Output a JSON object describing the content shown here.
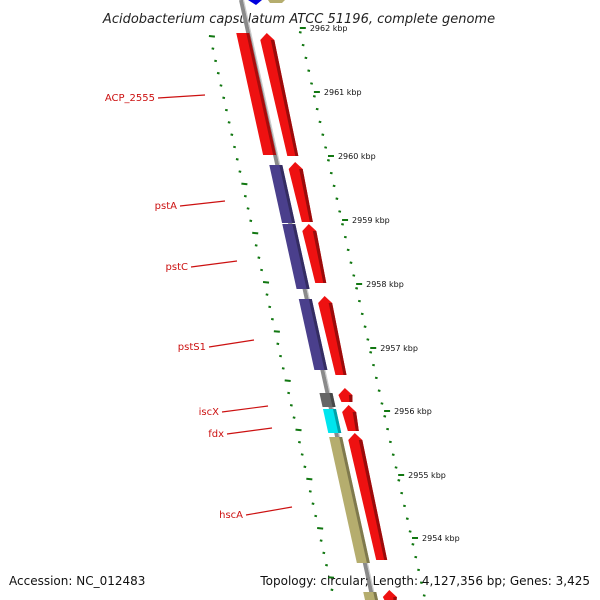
{
  "title": "Acidobacterium capsulatum ATCC 51196, complete genome",
  "accession_text": "Accession: NC_012483",
  "summary_text": "Topology: circular; Length: 4,127,356 bp; Genes: 3,425",
  "colors": {
    "forward_cds": "#ee1111",
    "reverse_pst": "#4a3f8c",
    "reverse_iscx": "#666666",
    "reverse_fdx": "#00e5ee",
    "reverse_hsca": "#b5ad6e",
    "label_red": "#cc1111",
    "tick_green": "#117711",
    "backbone": "#888888",
    "top_blue": "#0000dd"
  },
  "scale_labels": [
    "2962 kbp",
    "2961 kbp",
    "2960 kbp",
    "2959 kbp",
    "2958 kbp",
    "2957 kbp",
    "2956 kbp",
    "2955 kbp",
    "2954 kbp"
  ],
  "gene_labels": [
    {
      "name": "ACP_2555",
      "feature": "rev1"
    },
    {
      "name": "pstA",
      "feature": "pstA"
    },
    {
      "name": "pstC",
      "feature": "pstC"
    },
    {
      "name": "pstS1",
      "feature": "pstS1"
    },
    {
      "name": "iscX",
      "feature": "iscX"
    },
    {
      "name": "fdx",
      "feature": "fdx"
    },
    {
      "name": "hscA",
      "feature": "hscA"
    }
  ]
}
